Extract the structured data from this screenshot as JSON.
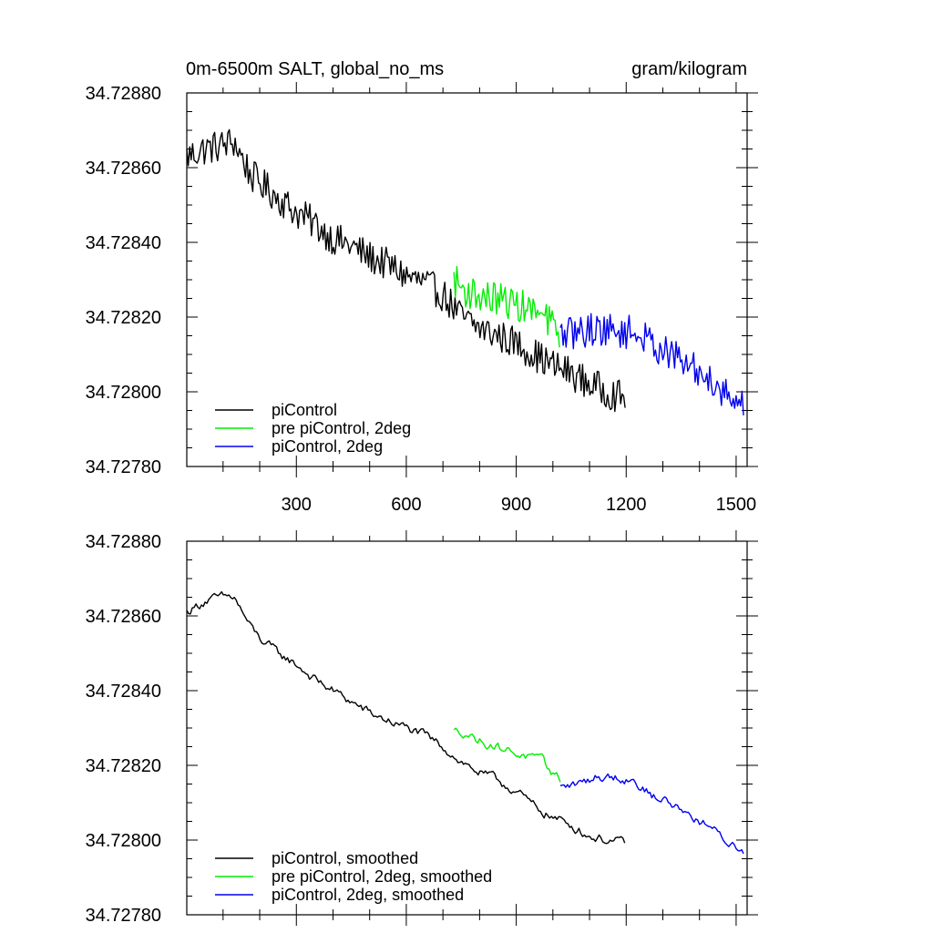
{
  "figure": {
    "title_left": "0m-6500m SALT, global_no_ms",
    "title_right": "gram/kilogram"
  },
  "chart_data": [
    {
      "type": "line",
      "title": "0m-6500m SALT, global_no_ms",
      "units": "gram/kilogram",
      "xlim": [
        1,
        1530
      ],
      "ylim": [
        34.7278,
        34.7288
      ],
      "x_ticks": [
        300,
        600,
        900,
        1200,
        1500
      ],
      "x_tick_labels": [
        "300",
        "600",
        "900",
        "1200",
        "1500"
      ],
      "y_ticks": [
        34.7278,
        34.728,
        34.7282,
        34.7284,
        34.7286,
        34.7288
      ],
      "y_tick_labels": [
        "34.72780",
        "34.72800",
        "34.72820",
        "34.72840",
        "34.72860",
        "34.72880"
      ],
      "legend_position": "bottom-left",
      "series": [
        {
          "name": "piControl",
          "color": "#000000",
          "x": [
            1,
            50,
            100,
            130,
            175,
            200,
            250,
            300,
            350,
            400,
            450,
            500,
            550,
            600,
            650,
            700,
            750,
            800,
            850,
            900,
            950,
            1000,
            1050,
            1100,
            1150,
            1200
          ],
          "values": [
            34.72863,
            34.72865,
            34.72866,
            34.72867,
            34.72858,
            34.72856,
            34.72852,
            34.72848,
            34.72845,
            34.72841,
            34.72839,
            34.72836,
            34.72834,
            34.72831,
            34.72829,
            34.72826,
            34.7282,
            34.72817,
            34.72815,
            34.72813,
            34.7281,
            34.72807,
            34.72805,
            34.72802,
            34.728,
            34.72798
          ]
        },
        {
          "name": "pre piControl, 2deg",
          "color": "#00ee00",
          "x": [
            730,
            760,
            790,
            820,
            850,
            880,
            910,
            940,
            970,
            1000,
            1020
          ],
          "values": [
            34.7283,
            34.72827,
            34.72826,
            34.72825,
            34.72825,
            34.72824,
            34.72823,
            34.72822,
            34.7282,
            34.72818,
            34.72816
          ]
        },
        {
          "name": "piControl, 2deg",
          "color": "#0000ee",
          "x": [
            1020,
            1070,
            1120,
            1170,
            1220,
            1270,
            1320,
            1370,
            1420,
            1470,
            1520
          ],
          "values": [
            34.72815,
            34.72816,
            34.72817,
            34.72816,
            34.72816,
            34.72813,
            34.7281,
            34.72807,
            34.72804,
            34.728,
            34.72796
          ]
        }
      ]
    },
    {
      "type": "line",
      "title": "",
      "xlim": [
        1,
        1530
      ],
      "ylim": [
        34.7278,
        34.7288
      ],
      "x_ticks": [
        300,
        600,
        900,
        1200,
        1500
      ],
      "y_ticks": [
        34.7278,
        34.728,
        34.7282,
        34.7284,
        34.7286,
        34.7288
      ],
      "y_tick_labels": [
        "34.72780",
        "34.72800",
        "34.72820",
        "34.72840",
        "34.72860",
        "34.72880"
      ],
      "legend_position": "bottom-left",
      "series": [
        {
          "name": "piControl, smoothed",
          "color": "#000000",
          "x": [
            1,
            50,
            100,
            130,
            175,
            200,
            250,
            300,
            350,
            400,
            450,
            500,
            550,
            600,
            650,
            700,
            750,
            800,
            850,
            900,
            950,
            1000,
            1050,
            1100,
            1150,
            1200
          ],
          "values": [
            34.72861,
            34.72864,
            34.72865,
            34.72865,
            34.72857,
            34.72854,
            34.7285,
            34.72847,
            34.72843,
            34.7284,
            34.72837,
            34.72834,
            34.72832,
            34.7283,
            34.72828,
            34.72825,
            34.72821,
            34.72818,
            34.72816,
            34.72813,
            34.72809,
            34.72806,
            34.72804,
            34.72801,
            34.728,
            34.72799
          ]
        },
        {
          "name": "pre piControl, 2deg, smoothed",
          "color": "#00ee00",
          "x": [
            730,
            760,
            790,
            820,
            850,
            880,
            910,
            940,
            970,
            1000,
            1020
          ],
          "values": [
            34.72829,
            34.72829,
            34.72827,
            34.72826,
            34.72825,
            34.72824,
            34.72823,
            34.72822,
            34.72821,
            34.72818,
            34.72816
          ]
        },
        {
          "name": "piControl, 2deg, smoothed",
          "color": "#0000ee",
          "x": [
            1020,
            1070,
            1120,
            1170,
            1220,
            1270,
            1320,
            1370,
            1420,
            1470,
            1520
          ],
          "values": [
            34.72814,
            34.72815,
            34.72817,
            34.72817,
            34.72816,
            34.72812,
            34.7281,
            34.72807,
            34.72804,
            34.728,
            34.72797
          ]
        }
      ]
    }
  ]
}
